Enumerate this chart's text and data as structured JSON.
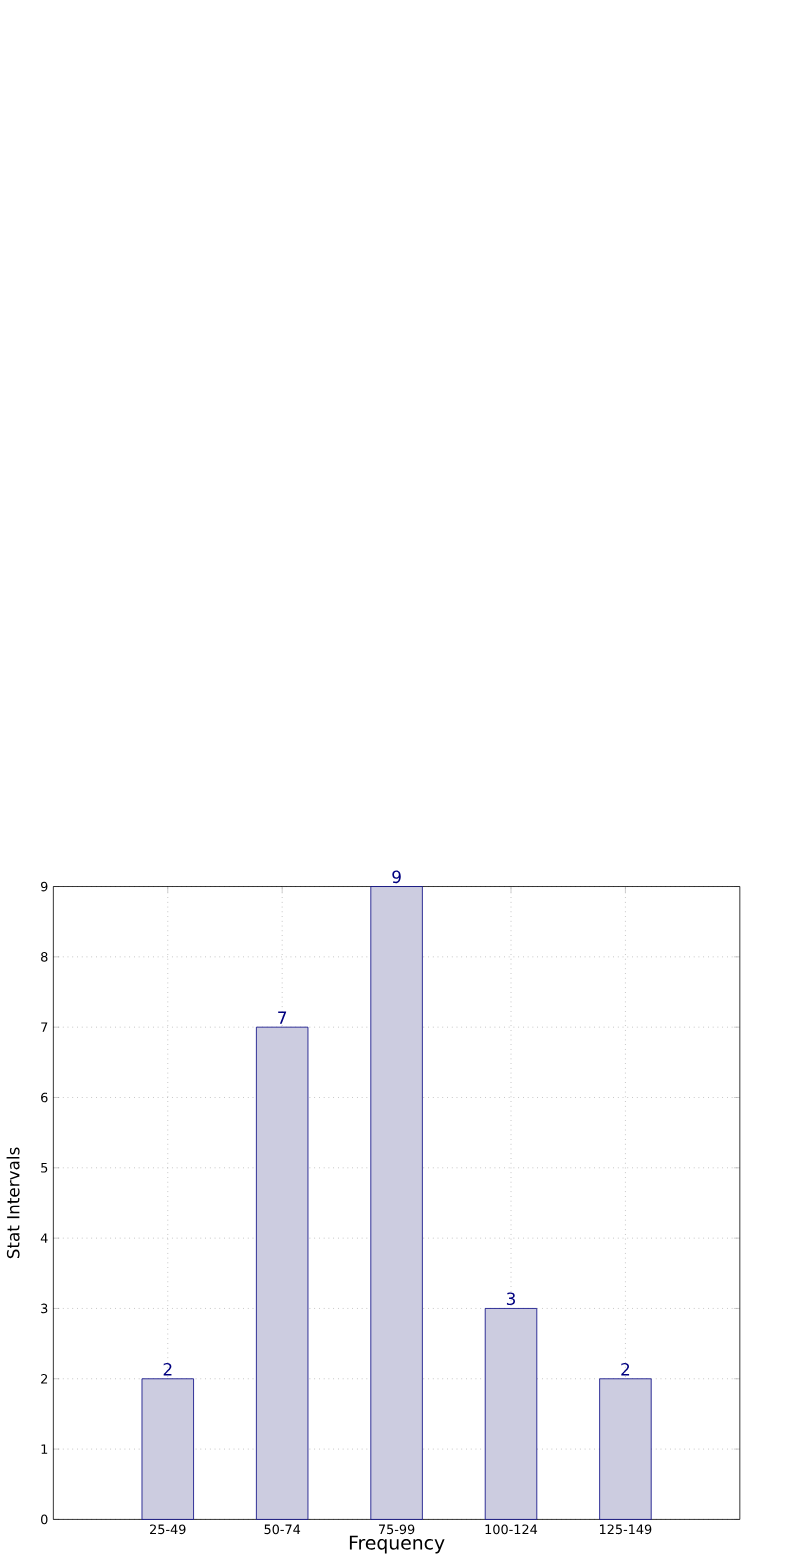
{
  "chart_data": {
    "type": "bar",
    "xlabel": "Frequency",
    "ylabel": "Stat Intervals",
    "categories": [
      "25-49",
      "50-74",
      "75-99",
      "100-124",
      "125-149"
    ],
    "values": [
      2,
      7,
      9,
      3,
      2
    ],
    "color": "#ccccE0",
    "ylim": [
      0,
      9
    ],
    "yticks": [
      0,
      1,
      2,
      3,
      4,
      5,
      6,
      7,
      8,
      9
    ],
    "grid": true,
    "data_labels": true
  }
}
